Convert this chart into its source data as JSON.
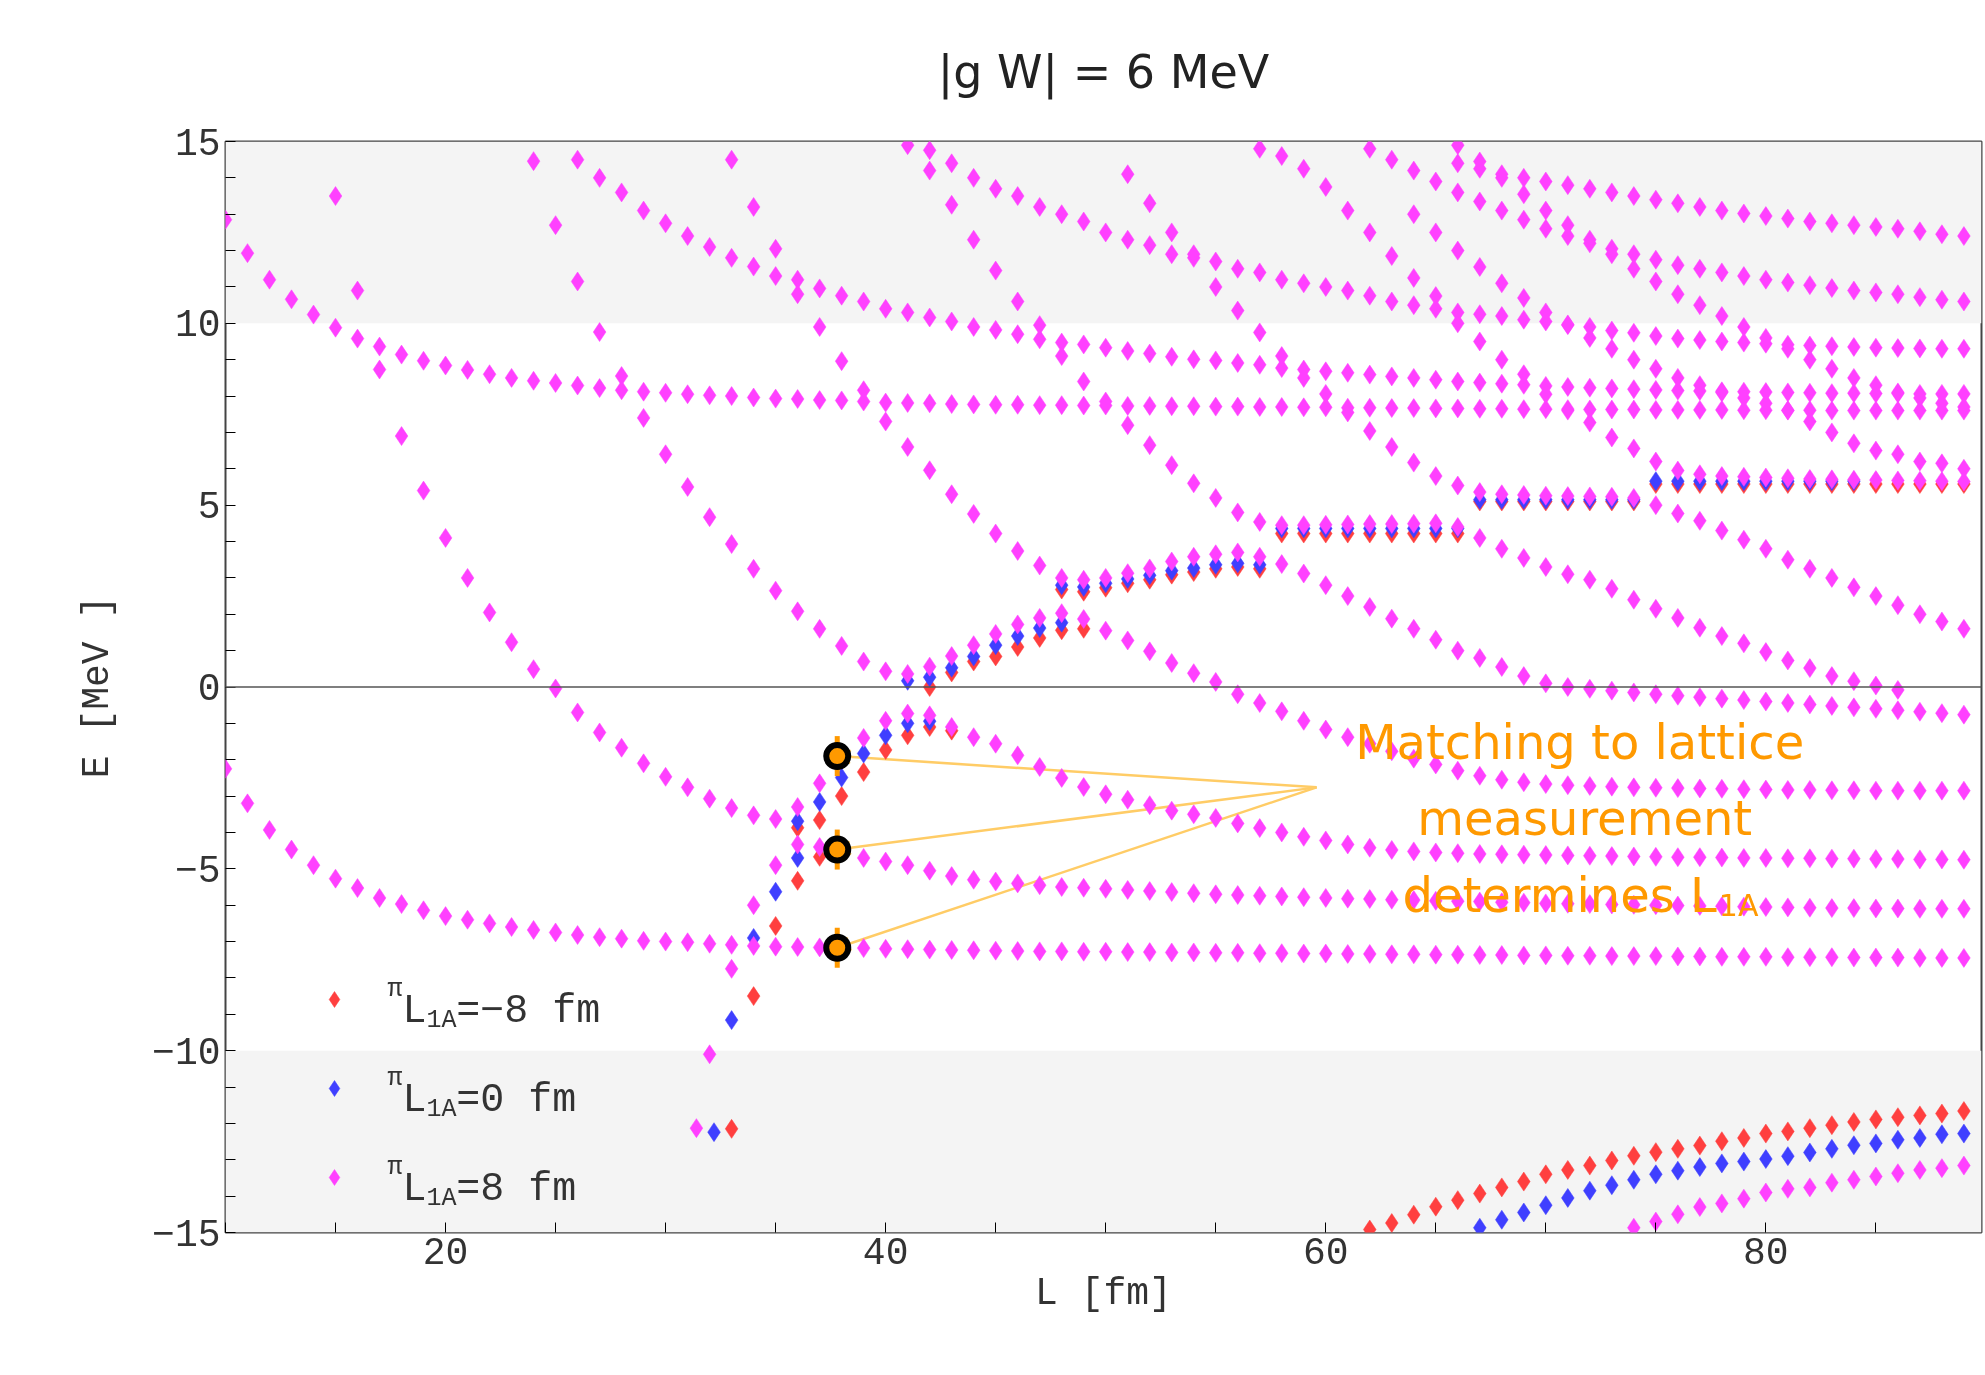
{
  "chart_data": {
    "type": "scatter",
    "title": "|g W| = 6 MeV",
    "xlabel": "L [fm]",
    "ylabel": "E [MeV ]",
    "xlim": [
      10,
      89.8
    ],
    "ylim": [
      -15,
      15
    ],
    "xticks": [
      {
        "value": 10,
        "label": null
      },
      {
        "value": 15,
        "label": null
      },
      {
        "value": 20,
        "label": "20"
      },
      {
        "value": 25,
        "label": null
      },
      {
        "value": 30,
        "label": null
      },
      {
        "value": 35,
        "label": null
      },
      {
        "value": 40,
        "label": "40"
      },
      {
        "value": 45,
        "label": null
      },
      {
        "value": 50,
        "label": null
      },
      {
        "value": 55,
        "label": null
      },
      {
        "value": 60,
        "label": "60"
      },
      {
        "value": 65,
        "label": null
      },
      {
        "value": 70,
        "label": null
      },
      {
        "value": 75,
        "label": null
      },
      {
        "value": 80,
        "label": "80"
      },
      {
        "value": 85,
        "label": null
      }
    ],
    "yticks": [
      {
        "value": -15,
        "label": "−15"
      },
      {
        "value": -14,
        "label": null
      },
      {
        "value": -13,
        "label": null
      },
      {
        "value": -12,
        "label": null
      },
      {
        "value": -11,
        "label": null
      },
      {
        "value": -10,
        "label": "−10"
      },
      {
        "value": -9,
        "label": null
      },
      {
        "value": -8,
        "label": null
      },
      {
        "value": -7,
        "label": null
      },
      {
        "value": -6,
        "label": null
      },
      {
        "value": -5,
        "label": "−5"
      },
      {
        "value": -4,
        "label": null
      },
      {
        "value": -3,
        "label": null
      },
      {
        "value": -2,
        "label": null
      },
      {
        "value": -1,
        "label": null
      },
      {
        "value": 0,
        "label": "0"
      },
      {
        "value": 1,
        "label": null
      },
      {
        "value": 2,
        "label": null
      },
      {
        "value": 3,
        "label": null
      },
      {
        "value": 4,
        "label": null
      },
      {
        "value": 5,
        "label": "5"
      },
      {
        "value": 6,
        "label": null
      },
      {
        "value": 7,
        "label": null
      },
      {
        "value": 8,
        "label": null
      },
      {
        "value": 9,
        "label": null
      },
      {
        "value": 10,
        "label": "10"
      },
      {
        "value": 11,
        "label": null
      },
      {
        "value": 12,
        "label": null
      },
      {
        "value": 13,
        "label": null
      },
      {
        "value": 14,
        "label": null
      },
      {
        "value": 15,
        "label": "15"
      }
    ],
    "marker": "diamond",
    "legend": "bottom left",
    "bands": [
      {
        "axis": "y",
        "from": 10,
        "to": 15,
        "color": "#f4f4f4"
      },
      {
        "axis": "y",
        "from": -15,
        "to": -10,
        "color": "#f4f4f4"
      }
    ],
    "ref_lines": [
      {
        "axis": "y",
        "value": 0,
        "color": "#555555"
      }
    ],
    "annotations": [
      {
        "text": "Matching to lattice measurement determines L$_{1A}$",
        "x": 37.8,
        "y": -4.47
      }
    ],
    "series": [
      {
        "name": "$^{π}$L$_{1A}$=−8 fm",
        "color": "#ff3f3f",
        "x": [
          33,
          34,
          35,
          36,
          36,
          37,
          37,
          38,
          39,
          40,
          41,
          42,
          43,
          42,
          43,
          44,
          45,
          46,
          47,
          48,
          49,
          48,
          49,
          50,
          51,
          52,
          53,
          54,
          55,
          56,
          57,
          58,
          59,
          60,
          61,
          62,
          63,
          64,
          65,
          66,
          67,
          68,
          69,
          70,
          71,
          72,
          73,
          74,
          75,
          76,
          77,
          78,
          79,
          80,
          81,
          82,
          83,
          84,
          85,
          86,
          87,
          88,
          89,
          62,
          63,
          64,
          65,
          66,
          67,
          68,
          69,
          70,
          71,
          72,
          73,
          74,
          75,
          76,
          77,
          78,
          79,
          80,
          81,
          82,
          83,
          84,
          85,
          86,
          87,
          88,
          89
        ],
        "values": [
          -12.15,
          -8.5,
          -6.57,
          -5.33,
          -3.87,
          -4.67,
          -3.66,
          -3.0,
          -2.34,
          -1.73,
          -1.33,
          -1.1,
          -1.2,
          0.0,
          0.4,
          0.7,
          0.84,
          1.1,
          1.35,
          1.56,
          1.6,
          2.68,
          2.62,
          2.73,
          2.85,
          2.95,
          3.09,
          3.16,
          3.25,
          3.3,
          3.25,
          4.22,
          4.22,
          4.22,
          4.22,
          4.22,
          4.22,
          4.22,
          4.22,
          4.22,
          5.1,
          5.1,
          5.1,
          5.1,
          5.1,
          5.1,
          5.1,
          5.1,
          5.58,
          5.58,
          5.58,
          5.58,
          5.58,
          5.58,
          5.58,
          5.58,
          5.58,
          5.58,
          5.58,
          5.58,
          5.58,
          5.58,
          5.58,
          -14.92,
          -14.74,
          -14.51,
          -14.29,
          -14.11,
          -13.93,
          -13.76,
          -13.6,
          -13.4,
          -13.28,
          -13.16,
          -13.02,
          -12.89,
          -12.79,
          -12.7,
          -12.61,
          -12.49,
          -12.4,
          -12.28,
          -12.22,
          -12.13,
          -12.05,
          -11.96,
          -11.89,
          -11.83,
          -11.78,
          -11.73,
          -11.66
        ]
      },
      {
        "name": "$^{π}$L$_{1A}$=0 fm",
        "color": "#3f3fff",
        "x": [
          32.2,
          33,
          34,
          35,
          36,
          36,
          37,
          38,
          39,
          40,
          41,
          42,
          41,
          42,
          43,
          44,
          45,
          46,
          47,
          48,
          48,
          49,
          50,
          51,
          52,
          53,
          54,
          55,
          56,
          57,
          58,
          59,
          60,
          61,
          62,
          63,
          64,
          65,
          66,
          67,
          68,
          69,
          70,
          71,
          72,
          73,
          74,
          75,
          76,
          77,
          78,
          79,
          80,
          81,
          82,
          83,
          84,
          67,
          68,
          69,
          70,
          71,
          72,
          73,
          74,
          75,
          76,
          77,
          78,
          79,
          80,
          81,
          82,
          83,
          84,
          85,
          86,
          87,
          88,
          89
        ],
        "values": [
          -12.24,
          -9.16,
          -6.9,
          -5.63,
          -4.7,
          -3.69,
          -3.16,
          -2.49,
          -1.83,
          -1.33,
          -1.0,
          -0.94,
          0.17,
          0.27,
          0.53,
          0.84,
          1.15,
          1.4,
          1.62,
          1.77,
          2.8,
          2.75,
          2.85,
          2.97,
          3.07,
          3.2,
          3.27,
          3.36,
          3.4,
          3.36,
          4.36,
          4.36,
          4.36,
          4.36,
          4.36,
          4.36,
          4.36,
          4.36,
          4.36,
          5.15,
          5.15,
          5.15,
          5.15,
          5.15,
          5.15,
          5.15,
          5.15,
          5.66,
          5.66,
          5.66,
          5.66,
          5.66,
          5.66,
          5.66,
          5.66,
          5.66,
          5.66,
          -14.87,
          -14.65,
          -14.45,
          -14.25,
          -14.05,
          -13.85,
          -13.7,
          -13.55,
          -13.4,
          -13.3,
          -13.2,
          -13.1,
          -13.05,
          -12.98,
          -12.9,
          -12.8,
          -12.7,
          -12.6,
          -12.55,
          -12.45,
          -12.4,
          -12.3,
          -12.28
        ]
      },
      {
        "name": "$^{π}$L$_{1A}$=8 fm",
        "color": "#ff40ff",
        "x": [
          10,
          11,
          12,
          13,
          14,
          15,
          16,
          17,
          18,
          19,
          20,
          21,
          22,
          23,
          24,
          25,
          26,
          27,
          28,
          29,
          30,
          31,
          32,
          33,
          34,
          35,
          36,
          37,
          38,
          39,
          40,
          41,
          42,
          43,
          44,
          45,
          46,
          47,
          48,
          49,
          50,
          51,
          52,
          53,
          54,
          55,
          56,
          57,
          58,
          59,
          60,
          61,
          62,
          63,
          64,
          65,
          66,
          67,
          68,
          69,
          70,
          71,
          72,
          73,
          74,
          75,
          76,
          77,
          78,
          79,
          80,
          81,
          82,
          83,
          84,
          85,
          86,
          87,
          88,
          89,
          15,
          16,
          17,
          18,
          19,
          20,
          21,
          22,
          23,
          24,
          25,
          26,
          27,
          28,
          29,
          30,
          31,
          32,
          33,
          34,
          35,
          36,
          37,
          38,
          39,
          40,
          41,
          42,
          43,
          44,
          45,
          46,
          47,
          48,
          49,
          50,
          51,
          52,
          53,
          54,
          55,
          56,
          57,
          58,
          59,
          60,
          61,
          62,
          63,
          64,
          65,
          66,
          67,
          68,
          69,
          70,
          71,
          72,
          73,
          74,
          75,
          76,
          77,
          78,
          79,
          80,
          81,
          82,
          83,
          84,
          85,
          86,
          87,
          88,
          89,
          31.4,
          32,
          33,
          34,
          35,
          36,
          37,
          38,
          39,
          40,
          41,
          42,
          43,
          44,
          45,
          46,
          47,
          48,
          49,
          50,
          51,
          52,
          53,
          54,
          55,
          56,
          57,
          58,
          59,
          60,
          61,
          62,
          63,
          64,
          65,
          66,
          67,
          68,
          69,
          70,
          71,
          72,
          73,
          74,
          75,
          76,
          77,
          78,
          79,
          80,
          81,
          82,
          83,
          84,
          85,
          86,
          87,
          88,
          89,
          24,
          25,
          26,
          27,
          28,
          29,
          30,
          31,
          32,
          33,
          34,
          35,
          36,
          37,
          38,
          39,
          40,
          41,
          42,
          43,
          44,
          45,
          46,
          47,
          48,
          49,
          50,
          51,
          52,
          53,
          54,
          55,
          56,
          57,
          58,
          59,
          60,
          61,
          62,
          63,
          64,
          65,
          66,
          67,
          68,
          69,
          70,
          71,
          72,
          73,
          74,
          75,
          76,
          77,
          78,
          79,
          80,
          81,
          82,
          83,
          84,
          85,
          86,
          87,
          88,
          89,
          33,
          34,
          35,
          36,
          37,
          38,
          39,
          40,
          41,
          42,
          43,
          44,
          45,
          46,
          47,
          48,
          49,
          50,
          51,
          52,
          53,
          54,
          55,
          56,
          57,
          58,
          59,
          60,
          61,
          62,
          63,
          64,
          65,
          66,
          67,
          68,
          69,
          70,
          71,
          72,
          73,
          74,
          75,
          76,
          77,
          78,
          79,
          80,
          81,
          82,
          83,
          84,
          85,
          86,
          87,
          88,
          89,
          10,
          11,
          12,
          13,
          14,
          15,
          16,
          17,
          18,
          19,
          20,
          21,
          22,
          23,
          24,
          25,
          26,
          27,
          28,
          29,
          30,
          31,
          32,
          33,
          34,
          35,
          36,
          37,
          38,
          39,
          40,
          41,
          42,
          43,
          44,
          45,
          46,
          47,
          48,
          49,
          50,
          51,
          52,
          53,
          54,
          55,
          56,
          57,
          58,
          59,
          60,
          61,
          62,
          63,
          64,
          65,
          66,
          67,
          68,
          69,
          70,
          71,
          72,
          73,
          74,
          75,
          76,
          77,
          78,
          79,
          80,
          81,
          82,
          83,
          84,
          85,
          86,
          87,
          88,
          89,
          26,
          27,
          28,
          29,
          30,
          31,
          32,
          33,
          34,
          35,
          36,
          37,
          38,
          39,
          40,
          41,
          42,
          43,
          44,
          45,
          46,
          47,
          48,
          49,
          50,
          51,
          52,
          53,
          54,
          55,
          56,
          57,
          58,
          59,
          60,
          61,
          62,
          63,
          64,
          65,
          66,
          67,
          68,
          69,
          70,
          71,
          72,
          73,
          74,
          75,
          76,
          77,
          78,
          79,
          80,
          81,
          82,
          83,
          84,
          85,
          86,
          87,
          88,
          89,
          41,
          42,
          43,
          44,
          45,
          46,
          47,
          48,
          49,
          50,
          51,
          52,
          53,
          54,
          55,
          56,
          57,
          58,
          59,
          60,
          61,
          62,
          63,
          64,
          65,
          66,
          67,
          68,
          69,
          70,
          71,
          72,
          73,
          74,
          75,
          76,
          77,
          78,
          79,
          80,
          81,
          82,
          83,
          84,
          85,
          86,
          87,
          88,
          89,
          51,
          52,
          53,
          54,
          55,
          56,
          57,
          58,
          59,
          60,
          61,
          62,
          63,
          64,
          65,
          66,
          67,
          68,
          69,
          70,
          71,
          72,
          73,
          74,
          75,
          76,
          77,
          78,
          79,
          80,
          81,
          82,
          83,
          84,
          85,
          86,
          87,
          88,
          89,
          42,
          43,
          44,
          45,
          46,
          47,
          48,
          49,
          50,
          51,
          52,
          53,
          54,
          55,
          56,
          57,
          58,
          59,
          60,
          61,
          62,
          63,
          64,
          65,
          66,
          67,
          68,
          69,
          70,
          71,
          72,
          73,
          74,
          75,
          76,
          77,
          78,
          79,
          80,
          81,
          82,
          83,
          84,
          85,
          86,
          57,
          58,
          59,
          60,
          61,
          62,
          63,
          64,
          65,
          66,
          67,
          68,
          69,
          70,
          71,
          72,
          73,
          74,
          75,
          76,
          77,
          78,
          79,
          80,
          81,
          82,
          83,
          84,
          85,
          86,
          87,
          88,
          89,
          66,
          67,
          68,
          69,
          70,
          71,
          72,
          73,
          74,
          75,
          76,
          77,
          78,
          79,
          80,
          81,
          82,
          83,
          84,
          85,
          86,
          87,
          88,
          89,
          62,
          63,
          64,
          65,
          66,
          67,
          68,
          69,
          70,
          71,
          72,
          73,
          74,
          75,
          76,
          77,
          78,
          79,
          80,
          81,
          82,
          83,
          84,
          85,
          86,
          87,
          88,
          89,
          64,
          65,
          66,
          67,
          68,
          69,
          70,
          71,
          72,
          73,
          74,
          75,
          76,
          77,
          78,
          79,
          80,
          81,
          82,
          83,
          84,
          85,
          86,
          87,
          88,
          89,
          66,
          67,
          68,
          69,
          70,
          71,
          72,
          73,
          74,
          75,
          76,
          77,
          78,
          79,
          80,
          81,
          82,
          83,
          84,
          85,
          86,
          87,
          88,
          89,
          74,
          75,
          76,
          77,
          78,
          79,
          80,
          81,
          82,
          83,
          84,
          85,
          86,
          87,
          88,
          89
        ],
        "values": [
          -2.25,
          -3.2,
          -3.93,
          -4.47,
          -4.9,
          -5.27,
          -5.53,
          -5.8,
          -5.97,
          -6.14,
          -6.3,
          -6.4,
          -6.5,
          -6.6,
          -6.68,
          -6.75,
          -6.82,
          -6.88,
          -6.92,
          -6.98,
          -7.0,
          -7.02,
          -7.06,
          -7.09,
          -7.12,
          -7.14,
          -7.15,
          -7.16,
          null,
          -7.18,
          -7.2,
          -7.21,
          -7.22,
          -7.23,
          -7.24,
          -7.25,
          -7.26,
          -7.27,
          -7.27,
          -7.28,
          -7.28,
          -7.29,
          -7.29,
          -7.3,
          -7.3,
          -7.31,
          -7.31,
          -7.32,
          -7.32,
          -7.33,
          -7.33,
          -7.34,
          -7.34,
          -7.35,
          -7.35,
          -7.36,
          -7.36,
          -7.37,
          -7.37,
          -7.38,
          -7.38,
          -7.39,
          -7.39,
          -7.4,
          -7.4,
          -7.4,
          -7.41,
          -7.41,
          -7.42,
          -7.42,
          -7.42,
          -7.43,
          -7.43,
          -7.43,
          -7.44,
          -7.44,
          -7.44,
          -7.45,
          -7.45,
          -7.45,
          13.5,
          10.9,
          8.73,
          6.9,
          5.4,
          4.1,
          3.0,
          2.05,
          1.23,
          0.49,
          -0.04,
          -0.7,
          -1.25,
          -1.67,
          -2.1,
          -2.47,
          -2.76,
          -3.07,
          -3.33,
          -3.53,
          -3.63,
          -4.33,
          -4.4,
          null,
          -4.7,
          -4.8,
          -4.9,
          -5.05,
          -5.2,
          -5.3,
          -5.35,
          -5.4,
          -5.45,
          -5.5,
          -5.52,
          -5.55,
          -5.58,
          -5.61,
          -5.64,
          -5.67,
          -5.7,
          -5.72,
          -5.74,
          -5.76,
          -5.78,
          -5.8,
          -5.82,
          -5.83,
          -5.85,
          -5.86,
          -5.88,
          -5.89,
          -5.9,
          -5.92,
          -5.93,
          -5.95,
          -5.96,
          -5.97,
          -5.98,
          -5.99,
          -6.0,
          -6.01,
          -6.02,
          -6.03,
          -6.04,
          -6.05,
          -6.06,
          -6.07,
          -6.08,
          -6.08,
          -6.09,
          -6.09,
          -6.1,
          -6.1,
          -6.1,
          -12.13,
          -10.1,
          -7.75,
          -6.0,
          -4.9,
          -3.3,
          -2.65,
          null,
          -1.4,
          -0.93,
          -0.73,
          -0.78,
          -1.1,
          -1.38,
          -1.56,
          -1.88,
          -2.2,
          -2.5,
          -2.75,
          -2.95,
          -3.1,
          -3.25,
          -3.4,
          -3.5,
          -3.6,
          -3.75,
          -3.88,
          -4.0,
          -4.12,
          -4.22,
          -4.33,
          -4.42,
          -4.48,
          -4.52,
          -4.55,
          -4.57,
          -4.59,
          -4.6,
          -4.61,
          -4.62,
          -4.63,
          -4.64,
          -4.65,
          -4.66,
          -4.67,
          -4.68,
          -4.68,
          -4.69,
          -4.7,
          -4.7,
          -4.71,
          -4.71,
          -4.72,
          -4.72,
          -4.73,
          -4.73,
          -4.74,
          -4.74,
          -4.75,
          14.46,
          12.7,
          11.15,
          9.76,
          8.55,
          7.4,
          6.4,
          5.5,
          4.67,
          3.93,
          3.25,
          2.65,
          2.08,
          1.6,
          1.13,
          0.7,
          0.43,
          0.36,
          0.56,
          0.85,
          1.15,
          1.46,
          1.72,
          1.9,
          2.03,
          1.87,
          1.55,
          1.28,
          0.98,
          0.66,
          0.38,
          0.14,
          -0.2,
          -0.44,
          -0.67,
          -0.93,
          -1.17,
          -1.38,
          -1.56,
          -1.77,
          -1.97,
          -2.13,
          -2.3,
          -2.44,
          -2.55,
          -2.62,
          -2.67,
          -2.7,
          -2.72,
          -2.74,
          -2.76,
          -2.77,
          -2.78,
          -2.79,
          -2.8,
          -2.81,
          -2.82,
          -2.83,
          -2.83,
          -2.84,
          -2.84,
          -2.85,
          -2.85,
          -2.85,
          -2.85,
          -2.85,
          14.5,
          13.2,
          12.05,
          10.8,
          9.9,
          8.96,
          8.16,
          7.3,
          6.6,
          5.96,
          5.3,
          4.76,
          4.22,
          3.74,
          3.34,
          3.0,
          2.95,
          3.0,
          3.13,
          3.26,
          3.45,
          3.58,
          3.65,
          3.7,
          3.58,
          3.38,
          3.12,
          2.8,
          2.5,
          2.2,
          1.88,
          1.6,
          1.3,
          1.0,
          0.8,
          0.55,
          0.3,
          0.1,
          0.0,
          -0.05,
          -0.1,
          -0.15,
          -0.2,
          -0.24,
          -0.28,
          -0.32,
          -0.36,
          -0.4,
          -0.44,
          -0.48,
          -0.52,
          -0.56,
          -0.6,
          -0.64,
          -0.68,
          -0.72,
          -0.76,
          12.85,
          11.93,
          11.2,
          10.66,
          10.24,
          9.88,
          9.58,
          9.36,
          9.14,
          8.97,
          8.84,
          8.72,
          8.6,
          8.5,
          8.42,
          8.36,
          8.29,
          8.22,
          8.16,
          8.12,
          8.09,
          8.05,
          8.02,
          8.0,
          7.96,
          7.93,
          7.92,
          7.89,
          7.88,
          7.85,
          7.82,
          7.81,
          7.8,
          7.78,
          7.77,
          7.76,
          7.76,
          7.75,
          7.75,
          7.74,
          7.74,
          7.73,
          7.73,
          7.72,
          7.72,
          7.71,
          7.71,
          7.7,
          7.7,
          7.69,
          7.69,
          7.68,
          7.68,
          7.67,
          7.67,
          7.66,
          7.66,
          7.65,
          7.65,
          7.64,
          7.64,
          7.64,
          7.63,
          7.63,
          7.63,
          7.62,
          7.62,
          7.62,
          7.62,
          7.61,
          7.61,
          7.61,
          7.61,
          7.6,
          7.6,
          7.6,
          7.6,
          7.6,
          7.6,
          7.6,
          14.5,
          14.0,
          13.6,
          13.1,
          12.75,
          12.4,
          12.1,
          11.8,
          11.56,
          11.3,
          11.2,
          10.96,
          10.76,
          10.6,
          10.4,
          10.3,
          10.16,
          10.05,
          9.9,
          9.82,
          9.7,
          9.56,
          9.47,
          9.42,
          9.33,
          9.24,
          9.17,
          9.08,
          9.01,
          8.98,
          8.91,
          8.86,
          8.77,
          8.73,
          8.68,
          8.64,
          8.59,
          8.54,
          8.5,
          8.45,
          8.4,
          8.37,
          8.34,
          8.31,
          8.28,
          8.25,
          8.23,
          8.21,
          8.19,
          8.17,
          8.15,
          8.14,
          8.13,
          8.12,
          8.11,
          8.1,
          8.09,
          8.08,
          8.08,
          8.07,
          8.07,
          8.06,
          8.06,
          8.06,
          14.9,
          14.76,
          14.4,
          14.0,
          13.7,
          13.5,
          13.2,
          13.0,
          12.8,
          12.5,
          12.3,
          12.15,
          11.9,
          11.8,
          11.7,
          11.5,
          11.4,
          11.2,
          11.1,
          11.0,
          10.9,
          10.76,
          10.6,
          10.5,
          10.4,
          10.3,
          10.25,
          10.2,
          10.1,
          10.05,
          9.97,
          9.9,
          9.8,
          9.74,
          9.65,
          9.58,
          9.54,
          9.5,
          9.47,
          9.44,
          9.41,
          9.39,
          9.37,
          9.35,
          9.33,
          9.32,
          9.31,
          9.3,
          9.3,
          14.1,
          13.3,
          12.5,
          11.9,
          11.0,
          10.35,
          9.75,
          9.1,
          8.5,
          8.06,
          7.55,
          7.04,
          6.6,
          6.17,
          5.8,
          5.54,
          5.36,
          5.3,
          5.28,
          5.26,
          5.25,
          5.24,
          5.23,
          5.2,
          5.0,
          4.77,
          4.57,
          4.3,
          4.05,
          3.8,
          3.5,
          3.25,
          3.0,
          2.74,
          2.5,
          2.25,
          2.0,
          1.8,
          1.6,
          14.2,
          13.26,
          12.3,
          11.45,
          10.6,
          9.95,
          9.1,
          8.4,
          7.85,
          7.2,
          6.65,
          6.1,
          5.6,
          5.2,
          4.8,
          4.54,
          4.45,
          4.45,
          4.46,
          4.47,
          4.48,
          4.48,
          4.49,
          4.5,
          4.4,
          4.1,
          3.8,
          3.55,
          3.3,
          3.1,
          2.95,
          2.7,
          2.4,
          2.15,
          1.9,
          1.63,
          1.4,
          1.2,
          0.96,
          0.73,
          0.52,
          0.3,
          0.16,
          0.04,
          -0.08,
          14.8,
          14.6,
          14.25,
          13.75,
          13.1,
          12.5,
          11.85,
          11.25,
          10.75,
          10.0,
          9.5,
          9.0,
          8.6,
          8.05,
          7.6,
          7.27,
          6.86,
          6.56,
          6.2,
          5.95,
          5.85,
          5.8,
          5.78,
          5.76,
          5.74,
          5.72,
          5.71,
          5.7,
          5.69,
          5.68,
          5.67,
          5.66,
          5.65,
          14.4,
          14.25,
          14.1,
          14.0,
          13.9,
          13.8,
          13.7,
          13.6,
          13.5,
          13.4,
          13.3,
          13.2,
          13.1,
          13.02,
          12.95,
          12.88,
          12.8,
          12.75,
          12.7,
          12.65,
          12.6,
          12.53,
          12.45,
          12.4,
          14.8,
          14.5,
          14.2,
          13.9,
          13.6,
          13.35,
          13.1,
          12.85,
          12.6,
          12.4,
          12.2,
          12.05,
          11.9,
          11.75,
          11.6,
          11.5,
          11.4,
          11.3,
          11.2,
          11.12,
          11.05,
          10.97,
          10.9,
          10.85,
          10.8,
          10.72,
          10.65,
          10.6,
          13.0,
          12.5,
          12.0,
          11.55,
          11.1,
          10.7,
          10.3,
          9.95,
          9.6,
          9.3,
          9.0,
          8.75,
          8.5,
          8.3,
          8.1,
          7.95,
          7.8,
          7.6,
          7.3,
          7.0,
          6.7,
          6.5,
          6.4,
          6.2,
          6.15,
          6.0,
          14.9,
          14.45,
          14.0,
          13.55,
          13.1,
          12.7,
          12.3,
          11.9,
          11.5,
          11.15,
          10.8,
          10.5,
          10.2,
          9.9,
          9.6,
          9.3,
          9.0,
          8.75,
          8.5,
          8.3,
          8.1,
          7.95,
          7.8,
          7.7,
          -14.87,
          -14.7,
          -14.5,
          -14.3,
          -14.2,
          -14.07,
          -13.9,
          -13.8,
          -13.76,
          -13.63,
          -13.55,
          -13.46,
          -13.37,
          -13.28,
          -13.23,
          -13.16
        ]
      },
      {
        "color": "#ff9900",
        "marker": "circle",
        "x": [
          37.8,
          37.8,
          37.8
        ],
        "values": [
          -1.9,
          -4.47,
          -7.17
        ],
        "errors": [
          0.55,
          0.55,
          0.55
        ]
      }
    ]
  }
}
